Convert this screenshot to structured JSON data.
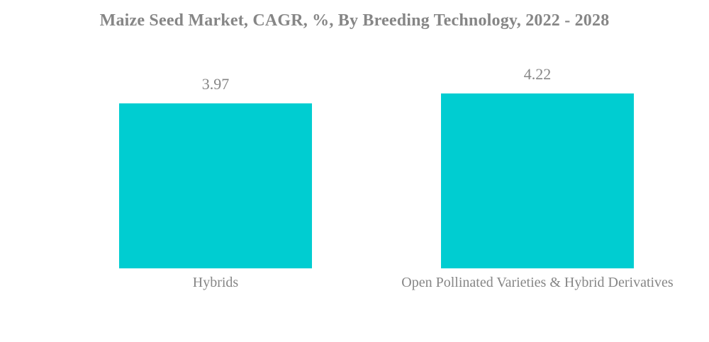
{
  "chart_data": {
    "type": "bar",
    "title": "Maize Seed Market, CAGR, %, By Breeding Technology, 2022 - 2028",
    "categories": [
      "Hybrids",
      "Open Pollinated Varieties & Hybrid Derivatives"
    ],
    "values": [
      3.97,
      4.22
    ],
    "value_labels": [
      "3.97",
      "4.22"
    ],
    "xlabel": "",
    "ylabel": "",
    "ylim": [
      0,
      4.6
    ],
    "grid": false,
    "legend_position": "none",
    "bar_color": "#00CDD1",
    "text_color": "#868686",
    "background_color": "#FFFFFF"
  }
}
